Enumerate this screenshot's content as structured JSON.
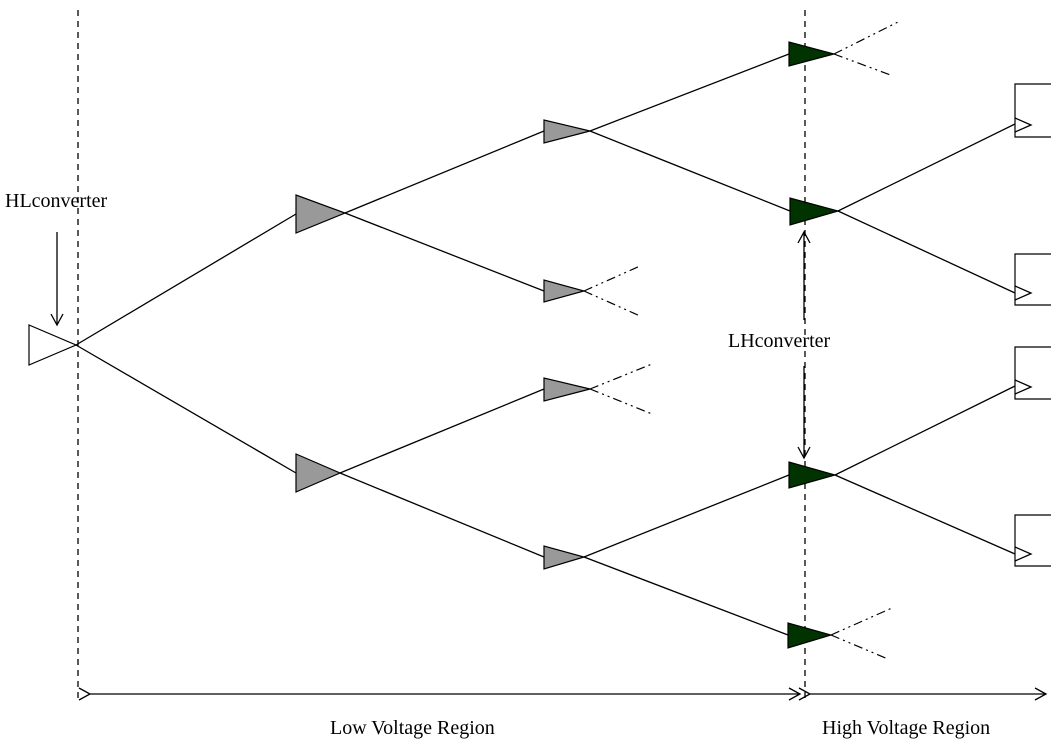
{
  "labels": {
    "hl_converter": "HLconverter",
    "lh_converter": "LHconverter",
    "low_region": "Low Voltage Region",
    "high_region": "High Voltage Region"
  },
  "colors": {
    "low_buffer": "#999999",
    "high_buffer": "#003300",
    "source": "#ffffff",
    "line": "#000000"
  }
}
